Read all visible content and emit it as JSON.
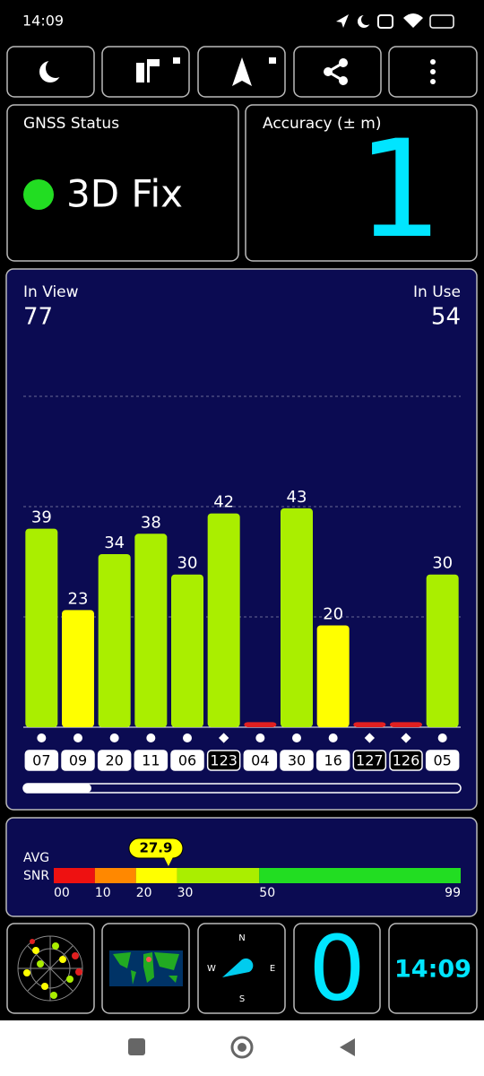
{
  "status_bar": {
    "time": "14:09"
  },
  "gnss_status": {
    "title": "GNSS Status",
    "fix": "3D Fix"
  },
  "accuracy": {
    "title": "Accuracy (± m)",
    "value": 1
  },
  "chart_data": {
    "type": "bar",
    "in_view_label": "In View",
    "in_view": 77,
    "in_use_label": "In Use",
    "in_use": 54,
    "categories": [
      "07",
      "09",
      "20",
      "11",
      "06",
      "123",
      "04",
      "30",
      "16",
      "127",
      "126",
      "05"
    ],
    "values": [
      39,
      23,
      34,
      38,
      30,
      42,
      1,
      43,
      20,
      1,
      1,
      30
    ],
    "value_labels": [
      "39",
      "23",
      "34",
      "38",
      "30",
      "42",
      null,
      "43",
      "20",
      null,
      null,
      "30"
    ],
    "colors": [
      "#aaee00",
      "#ffff00",
      "#aaee00",
      "#aaee00",
      "#aaee00",
      "#aaee00",
      "#e02020",
      "#aaee00",
      "#ffff00",
      "#e02020",
      "#e02020",
      "#aaee00"
    ],
    "markers": [
      "circle",
      "circle",
      "circle",
      "circle",
      "circle",
      "diamond",
      "circle",
      "circle",
      "circle",
      "diamond",
      "diamond",
      "circle"
    ],
    "ylim": [
      0,
      65
    ]
  },
  "snr": {
    "label_1": "AVG",
    "label_2": "SNR",
    "xlim": [
      0,
      99
    ],
    "xticks": [
      {
        "value": 0,
        "label": "00"
      },
      10,
      20,
      30,
      50,
      99
    ],
    "colors": [
      "#ee1111",
      "#ff8800",
      "#ffff00",
      "#aaee00",
      "#22dd22"
    ],
    "avg": 27.9
  },
  "tiles": {
    "compass": {
      "north": "N",
      "east": "E",
      "south": "S",
      "west": "W"
    },
    "speed": 0,
    "clock": "14:09"
  }
}
